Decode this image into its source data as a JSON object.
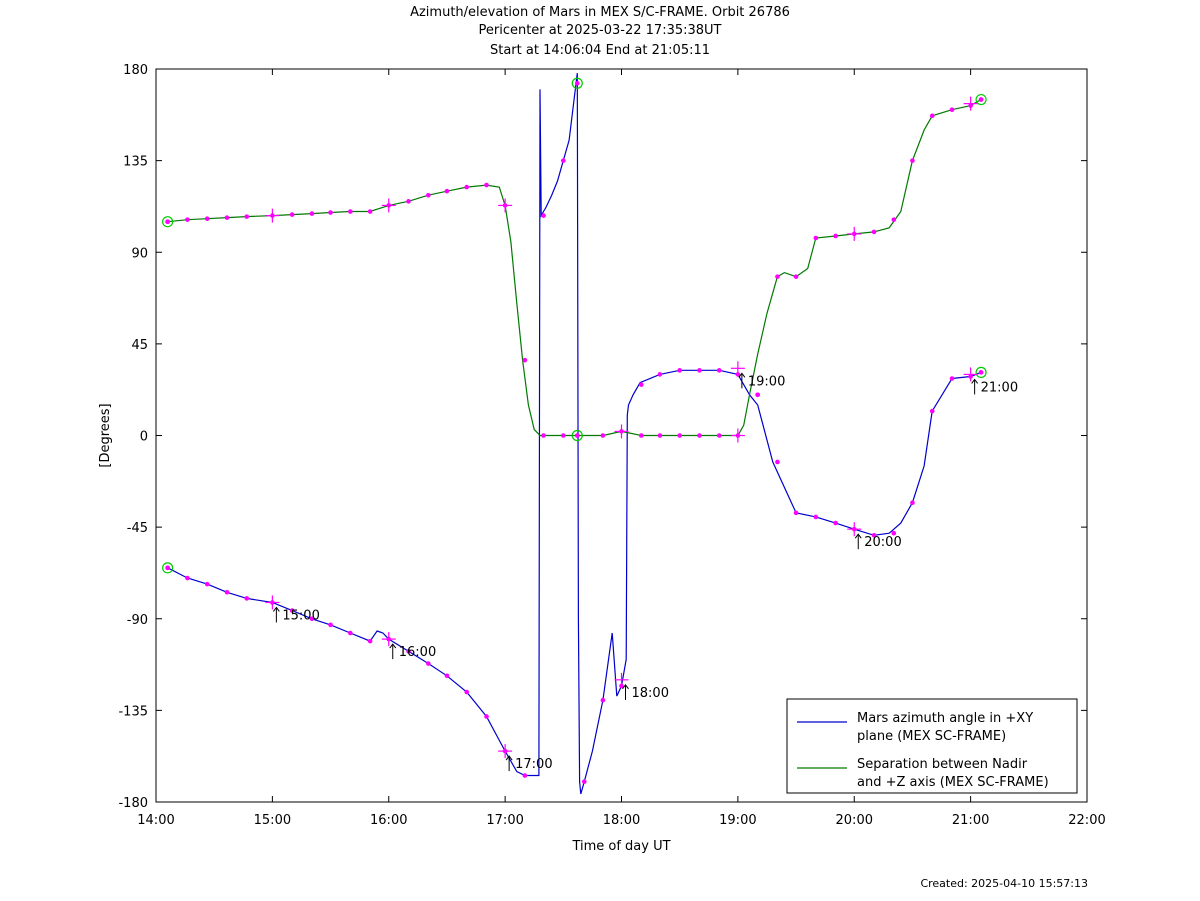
{
  "header": {
    "title": "Azimuth/elevation of Mars in MEX S/C-FRAME.  Orbit 26786",
    "pericenter": "Pericenter at 2025-03-22 17:35:38UT",
    "span": "Start at 14:06:04 End at 21:05:11"
  },
  "footer": {
    "created": "Created: 2025-04-10 15:57:13"
  },
  "chart_data": {
    "type": "line",
    "xlabel": "Time of day UT",
    "ylabel": "[Degrees]",
    "xlim": [
      14.0,
      22.0
    ],
    "ylim": [
      -180,
      180
    ],
    "xticks": [
      14,
      15,
      16,
      17,
      18,
      19,
      20,
      21,
      22
    ],
    "xtick_labels": [
      "14:00",
      "15:00",
      "16:00",
      "17:00",
      "18:00",
      "19:00",
      "20:00",
      "21:00",
      "22:00"
    ],
    "yticks": [
      180,
      135,
      90,
      45,
      0,
      -45,
      -90,
      -135,
      -180
    ],
    "ytick_labels": [
      "180",
      "135",
      "90",
      "45",
      "0",
      "-45",
      "-90",
      "-135",
      "-180"
    ],
    "grid": false,
    "legend_position": "bottom-right",
    "colors": {
      "azimuth": "#0000cc",
      "separation": "#007a00",
      "marker": "#ff00ff",
      "endpoint": "#00cc00"
    },
    "series": [
      {
        "name": "Mars azimuth angle in +XY plane (MEX SC-FRAME)",
        "legend_lines": [
          "Mars azimuth angle in +XY",
          "plane (MEX SC-FRAME)"
        ],
        "color": "#0000cc",
        "x": [
          14.1,
          14.27,
          14.44,
          14.61,
          14.78,
          15.0,
          15.17,
          15.34,
          15.5,
          15.67,
          15.84,
          15.9,
          15.95,
          16.0,
          16.17,
          16.34,
          16.5,
          16.67,
          16.84,
          17.0,
          17.1,
          17.17,
          17.25,
          17.29,
          17.3,
          17.31,
          17.33,
          17.35,
          17.4,
          17.45,
          17.5,
          17.55,
          17.62,
          17.63,
          17.64,
          17.65,
          17.68,
          17.75,
          17.84,
          17.92,
          17.96,
          18.0,
          18.04,
          18.05,
          18.06,
          18.1,
          18.16,
          18.33,
          18.5,
          18.67,
          18.84,
          19.0,
          19.05,
          19.1,
          19.17,
          19.3,
          19.5,
          19.67,
          19.84,
          20.0,
          20.17,
          20.3,
          20.4,
          20.5,
          20.6,
          20.67,
          20.84,
          21.0,
          21.09
        ],
        "y": [
          -65,
          -70,
          -73,
          -77,
          -80,
          -82,
          -86,
          -90,
          -93,
          -97,
          -101,
          -96,
          -97,
          -100,
          -106,
          -112,
          -118,
          -126,
          -138,
          -155,
          -165,
          -167,
          -167,
          -167,
          170,
          108,
          110,
          112,
          118,
          125,
          135,
          145,
          178,
          -90,
          -170,
          -176,
          -170,
          -155,
          -130,
          -97,
          -128,
          -123,
          -110,
          10,
          15,
          20,
          26,
          30,
          32,
          32,
          32,
          30,
          25,
          20,
          15,
          -13,
          -38,
          -40,
          -43,
          -46,
          -49,
          -48,
          -43,
          -33,
          -15,
          12,
          28,
          29,
          31
        ],
        "markers_x": [
          14.1,
          14.27,
          14.44,
          14.61,
          14.78,
          15.0,
          15.17,
          15.34,
          15.5,
          15.67,
          15.84,
          16.0,
          16.17,
          16.34,
          16.5,
          16.67,
          16.84,
          17.0,
          17.17,
          17.33,
          17.5,
          17.68,
          17.84,
          18.0,
          18.17,
          18.33,
          18.5,
          18.67,
          18.84,
          19.0,
          19.17,
          19.34,
          19.5,
          19.67,
          19.84,
          20.0,
          20.17,
          20.34,
          20.5,
          20.67,
          20.84,
          21.0,
          21.09
        ],
        "markers_y": [
          -65,
          -70,
          -73,
          -77,
          -80,
          -82,
          -86,
          -90,
          -93,
          -97,
          -101,
          -100,
          -106,
          -112,
          -118,
          -126,
          -138,
          -155,
          -167,
          108,
          135,
          -170,
          -130,
          -123,
          25,
          30,
          32,
          32,
          32,
          30,
          20,
          -13,
          -38,
          -40,
          -43,
          -46,
          -49,
          -48,
          -33,
          12,
          28,
          29,
          31
        ]
      },
      {
        "name": "Separation between Nadir and +Z axis (MEX SC-FRAME)",
        "legend_lines": [
          "Separation between Nadir",
          "and +Z axis (MEX SC-FRAME)"
        ],
        "color": "#007a00",
        "x": [
          14.1,
          14.27,
          14.44,
          14.61,
          14.78,
          15.0,
          15.17,
          15.34,
          15.5,
          15.67,
          15.84,
          16.0,
          16.17,
          16.34,
          16.5,
          16.67,
          16.84,
          16.95,
          17.0,
          17.05,
          17.1,
          17.15,
          17.2,
          17.25,
          17.3,
          17.5,
          17.62,
          17.84,
          18.0,
          18.17,
          18.33,
          18.5,
          18.67,
          18.84,
          19.0,
          19.05,
          19.1,
          19.17,
          19.25,
          19.34,
          19.4,
          19.5,
          19.6,
          19.67,
          19.84,
          20.0,
          20.17,
          20.3,
          20.4,
          20.5,
          20.6,
          20.67,
          20.84,
          21.0,
          21.09
        ],
        "y": [
          105,
          106,
          106.5,
          107,
          107.5,
          108,
          108.5,
          109,
          109.5,
          110,
          110,
          113,
          115,
          118,
          120,
          122,
          123,
          122,
          113,
          95,
          65,
          37,
          15,
          3,
          0,
          0,
          0,
          0,
          2,
          0,
          0,
          0,
          0,
          0,
          0,
          5,
          20,
          40,
          60,
          78,
          80,
          78,
          82,
          97,
          98,
          99,
          100,
          102,
          110,
          135,
          150,
          157,
          160,
          162,
          165
        ],
        "markers_x": [
          14.1,
          14.27,
          14.44,
          14.61,
          14.78,
          15.0,
          15.17,
          15.34,
          15.5,
          15.67,
          15.84,
          16.0,
          16.17,
          16.34,
          16.5,
          16.67,
          16.84,
          17.0,
          17.17,
          17.33,
          17.5,
          17.62,
          17.84,
          18.0,
          18.17,
          18.33,
          18.5,
          18.67,
          18.84,
          19.0,
          19.17,
          19.34,
          19.5,
          19.67,
          19.84,
          20.0,
          20.17,
          20.34,
          20.5,
          20.67,
          20.84,
          21.0,
          21.09
        ],
        "markers_y": [
          105,
          106,
          106.5,
          107,
          107.5,
          108,
          108.5,
          109,
          109.5,
          110,
          110,
          113,
          115,
          118,
          120,
          122,
          123,
          113,
          37,
          0,
          0,
          0,
          0,
          2,
          0,
          0,
          0,
          0,
          0,
          0,
          20,
          78,
          78,
          97,
          98,
          99,
          100,
          106,
          135,
          157,
          160,
          162,
          165
        ]
      }
    ],
    "endpoint_circles": [
      {
        "x": 14.1,
        "y": 105
      },
      {
        "x": 14.1,
        "y": -65
      },
      {
        "x": 17.62,
        "y": 173
      },
      {
        "x": 17.62,
        "y": 0
      },
      {
        "x": 21.09,
        "y": 165
      },
      {
        "x": 21.09,
        "y": 31
      }
    ],
    "cross_markers": [
      {
        "x": 15.0,
        "y": -82
      },
      {
        "x": 15.0,
        "y": 108
      },
      {
        "x": 16.0,
        "y": -100
      },
      {
        "x": 16.0,
        "y": 113
      },
      {
        "x": 17.0,
        "y": -155
      },
      {
        "x": 17.0,
        "y": 113
      },
      {
        "x": 18.0,
        "y": -120
      },
      {
        "x": 18.0,
        "y": 2
      },
      {
        "x": 19.0,
        "y": 33
      },
      {
        "x": 19.0,
        "y": 0
      },
      {
        "x": 20.0,
        "y": -46
      },
      {
        "x": 20.0,
        "y": 99
      },
      {
        "x": 21.0,
        "y": 30
      },
      {
        "x": 21.0,
        "y": 163
      }
    ],
    "annotations": [
      {
        "text": "15:00",
        "x": 15.0,
        "y": -82
      },
      {
        "text": "16:00",
        "x": 16.0,
        "y": -100
      },
      {
        "text": "17:00",
        "x": 17.0,
        "y": -155
      },
      {
        "text": "18:00",
        "x": 18.0,
        "y": -120
      },
      {
        "text": "19:00",
        "x": 19.0,
        "y": 33
      },
      {
        "text": "20:00",
        "x": 20.0,
        "y": -46
      },
      {
        "text": "21:00",
        "x": 21.0,
        "y": 30
      }
    ]
  }
}
